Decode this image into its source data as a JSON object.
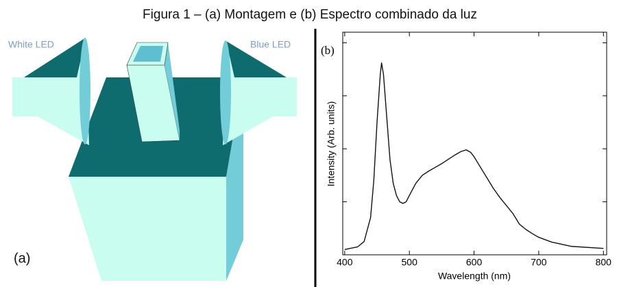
{
  "caption": "Figura 1 – (a) Montagem e (b) Espectro combinado da luz",
  "panel_a": {
    "label": "(a)",
    "left_label": "White LED",
    "right_label": "Blue LED"
  },
  "chart_data": {
    "type": "line",
    "title": "(b)",
    "x_label": "Wavelength (nm)",
    "y_label": "Intensity (Arb. units)",
    "xlim": [
      397,
      805
    ],
    "xticks": [
      400,
      500,
      600,
      700,
      800
    ],
    "ylim": [
      0,
      4.2
    ],
    "yticks": [
      1,
      2,
      3,
      4
    ],
    "series": [
      {
        "color": "#111111",
        "x": [
          400,
          420,
          430,
          440,
          445,
          450,
          455,
          457,
          460,
          465,
          470,
          475,
          480,
          485,
          490,
          495,
          500,
          510,
          520,
          530,
          540,
          550,
          560,
          570,
          580,
          588,
          595,
          600,
          610,
          620,
          630,
          640,
          650,
          660,
          670,
          680,
          690,
          700,
          720,
          750,
          800
        ],
        "values": [
          0.1,
          0.15,
          0.25,
          0.7,
          1.4,
          2.5,
          3.4,
          3.62,
          3.4,
          2.6,
          1.8,
          1.35,
          1.12,
          1.0,
          0.97,
          1.0,
          1.12,
          1.35,
          1.5,
          1.58,
          1.65,
          1.72,
          1.8,
          1.88,
          1.95,
          1.98,
          1.93,
          1.85,
          1.65,
          1.45,
          1.25,
          1.08,
          0.93,
          0.78,
          0.58,
          0.48,
          0.4,
          0.33,
          0.24,
          0.16,
          0.12
        ]
      }
    ]
  }
}
